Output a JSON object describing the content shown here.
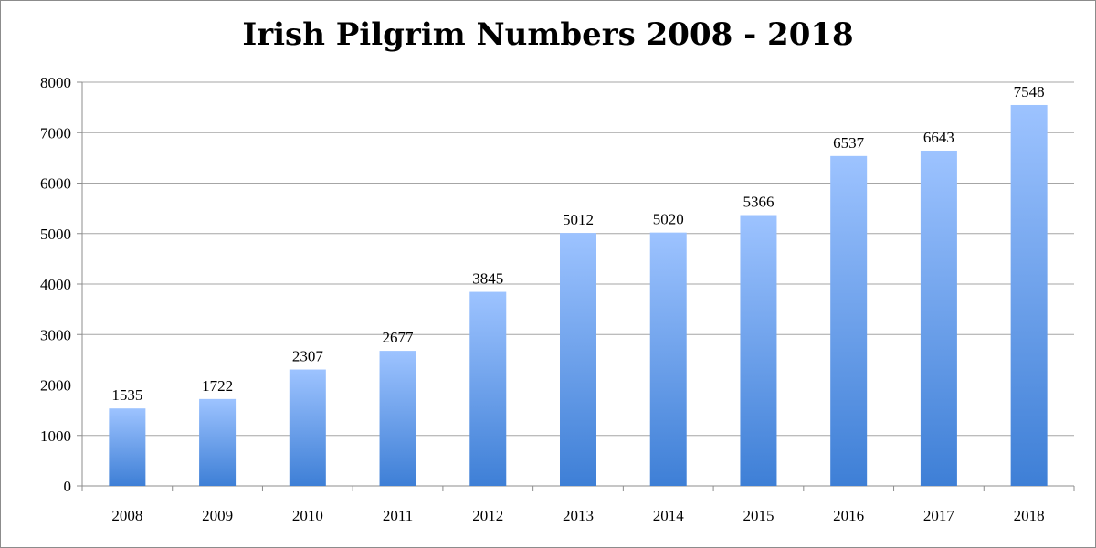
{
  "chart_data": {
    "type": "bar",
    "title": "Irish Pilgrim Numbers 2008 - 2018",
    "xlabel": "",
    "ylabel": "",
    "categories": [
      "2008",
      "2009",
      "2010",
      "2011",
      "2012",
      "2013",
      "2014",
      "2015",
      "2016",
      "2017",
      "2018"
    ],
    "values": [
      1535,
      1722,
      2307,
      2677,
      3845,
      5012,
      5020,
      5366,
      6537,
      6643,
      7548
    ],
    "data_labels": [
      "1535",
      "1722",
      "2307",
      "2677",
      "3845",
      "5012",
      "5020",
      "5366",
      "6537",
      "6643",
      "7548"
    ],
    "ylim": [
      0,
      8000
    ],
    "y_ticks": [
      0,
      1000,
      2000,
      3000,
      4000,
      5000,
      6000,
      7000,
      8000
    ],
    "grid": true,
    "legend": "none",
    "colors": {
      "bar_top": "#9dc3ff",
      "bar_bottom": "#3e7fd6",
      "grid": "#a6a6a6",
      "axis": "#8c8c8c"
    }
  }
}
